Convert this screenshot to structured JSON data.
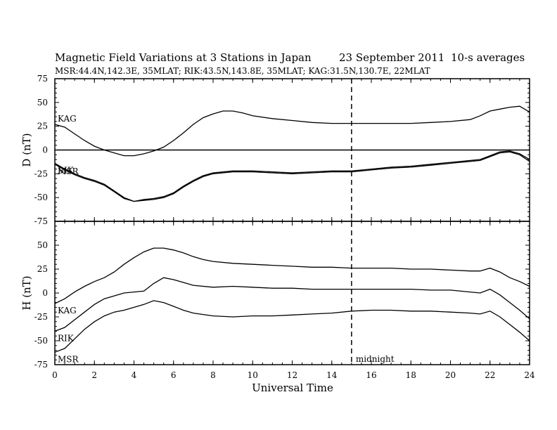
{
  "header": {
    "title": "Magnetic Field Variations at 3 Stations in Japan",
    "date": "23 September 2011",
    "averaging": "10-s averages",
    "stations_line": "MSR:44.4N,142.3E, 35MLAT;  RIK:43.5N,143.8E, 35MLAT;  KAG:31.5N,130.7E, 22MLAT"
  },
  "chart_data": {
    "type": "line",
    "xlabel": "Universal Time",
    "xlim": [
      0,
      24
    ],
    "x_ticks": [
      0,
      2,
      4,
      6,
      8,
      10,
      12,
      14,
      16,
      18,
      20,
      22,
      24
    ],
    "marker": {
      "x": 15,
      "label": "midnight"
    },
    "panels": [
      {
        "ylabel": "D (nT)",
        "ylim": [
          -75,
          75
        ],
        "y_ticks": [
          75,
          50,
          25,
          0,
          -25,
          -50,
          -75
        ],
        "zero_line": true,
        "series": [
          {
            "name": "KAG",
            "x": [
              0,
              0.5,
              1,
              1.5,
              2,
              2.5,
              3,
              3.5,
              4,
              4.5,
              5,
              5.5,
              6,
              6.5,
              7,
              7.5,
              8,
              8.5,
              9,
              9.5,
              10,
              11,
              12,
              13,
              14,
              15,
              16,
              17,
              18,
              19,
              20,
              21,
              21.5,
              22,
              22.5,
              23,
              23.5,
              24
            ],
            "y": [
              27,
              24,
              17,
              10,
              4,
              0,
              -3,
              -6,
              -6,
              -4,
              -1,
              3,
              10,
              18,
              27,
              34,
              38,
              41,
              41,
              39,
              36,
              33,
              31,
              29,
              28,
              28,
              28,
              28,
              28,
              29,
              30,
              32,
              36,
              41,
              43,
              45,
              46,
              40
            ]
          },
          {
            "name": "RIK",
            "x": [
              0,
              0.5,
              1,
              1.5,
              2,
              2.5,
              3,
              3.5,
              4,
              4.5,
              5,
              5.5,
              6,
              6.5,
              7,
              7.5,
              8,
              9,
              10,
              11,
              12,
              13,
              14,
              15,
              16,
              17,
              18,
              19,
              20,
              21,
              21.5,
              22,
              22.5,
              23,
              23.5,
              24
            ],
            "y": [
              -14,
              -20,
              -25,
              -29,
              -32,
              -36,
              -43,
              -50,
              -54,
              -52,
              -51,
              -49,
              -45,
              -38,
              -32,
              -27,
              -24,
              -22,
              -22,
              -23,
              -24,
              -23,
              -22,
              -22,
              -20,
              -18,
              -17,
              -15,
              -13,
              -11,
              -10,
              -6,
              -2,
              -1,
              -4,
              -10
            ]
          },
          {
            "name": "MSR",
            "x": [
              0,
              0.5,
              1,
              1.5,
              2,
              2.5,
              3,
              3.5,
              4,
              4.5,
              5,
              5.5,
              6,
              6.5,
              7,
              7.5,
              8,
              9,
              10,
              11,
              12,
              13,
              14,
              15,
              16,
              17,
              18,
              19,
              20,
              21,
              21.5,
              22,
              22.5,
              23,
              23.5,
              24
            ],
            "y": [
              -15,
              -21,
              -26,
              -30,
              -33,
              -37,
              -44,
              -51,
              -54,
              -53,
              -52,
              -50,
              -46,
              -39,
              -33,
              -28,
              -25,
              -23,
              -23,
              -24,
              -25,
              -24,
              -23,
              -23,
              -21,
              -19,
              -18,
              -16,
              -14,
              -12,
              -11,
              -7,
              -3,
              -2,
              -5,
              -12
            ]
          }
        ]
      },
      {
        "ylabel": "H (nT)",
        "ylim": [
          -75,
          75
        ],
        "y_ticks": [
          75,
          50,
          25,
          0,
          -25,
          -50,
          -75
        ],
        "zero_line": false,
        "series": [
          {
            "name": "KAG",
            "x": [
              0,
              0.5,
              1,
              1.5,
              2,
              2.5,
              3,
              3.5,
              4,
              4.5,
              5,
              5.5,
              6,
              6.5,
              7,
              7.5,
              8,
              9,
              10,
              11,
              12,
              13,
              14,
              15,
              16,
              17,
              18,
              19,
              20,
              21,
              21.5,
              22,
              22.5,
              23,
              23.5,
              24
            ],
            "y": [
              -11,
              -6,
              1,
              7,
              12,
              16,
              22,
              30,
              37,
              43,
              47,
              47,
              45,
              42,
              38,
              35,
              33,
              31,
              30,
              29,
              28,
              27,
              27,
              26,
              26,
              26,
              25,
              25,
              24,
              23,
              23,
              26,
              22,
              16,
              12,
              7
            ]
          },
          {
            "name": "RIK",
            "x": [
              0,
              0.5,
              1,
              1.5,
              2,
              2.5,
              3,
              3.5,
              4,
              4.5,
              5,
              5.5,
              6,
              6.5,
              7,
              8,
              9,
              10,
              11,
              12,
              13,
              14,
              15,
              16,
              17,
              18,
              19,
              20,
              21,
              21.5,
              22,
              22.5,
              23,
              23.5,
              24
            ],
            "y": [
              -40,
              -36,
              -28,
              -20,
              -12,
              -6,
              -3,
              0,
              1,
              2,
              10,
              16,
              14,
              11,
              8,
              6,
              7,
              6,
              5,
              5,
              4,
              4,
              4,
              4,
              4,
              4,
              3,
              3,
              1,
              0,
              4,
              -2,
              -10,
              -18,
              -27
            ]
          },
          {
            "name": "MSR",
            "x": [
              0,
              0.5,
              1,
              1.5,
              2,
              2.5,
              3,
              3.5,
              4,
              4.5,
              5,
              5.5,
              6,
              6.5,
              7,
              8,
              9,
              10,
              11,
              12,
              13,
              14,
              15,
              16,
              17,
              18,
              19,
              20,
              21,
              21.5,
              22,
              22.5,
              23,
              23.5,
              24
            ],
            "y": [
              -62,
              -58,
              -48,
              -38,
              -30,
              -24,
              -20,
              -18,
              -15,
              -12,
              -8,
              -10,
              -14,
              -18,
              -21,
              -24,
              -25,
              -24,
              -24,
              -23,
              -22,
              -21,
              -19,
              -18,
              -18,
              -19,
              -19,
              -20,
              -21,
              -22,
              -19,
              -25,
              -33,
              -41,
              -50
            ]
          }
        ]
      }
    ]
  }
}
